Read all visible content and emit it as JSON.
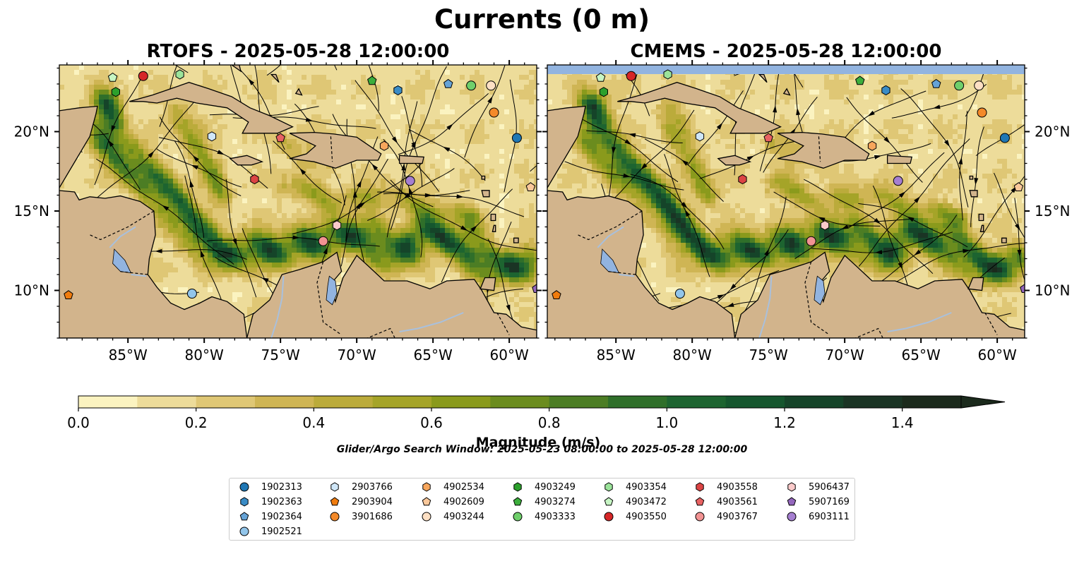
{
  "title": "Currents (0 m)",
  "panels": [
    {
      "title": "RTOFS - 2025-05-28 12:00:00"
    },
    {
      "title": "CMEMS - 2025-05-28 12:00:00"
    }
  ],
  "colors": {
    "land": "#d2b48c",
    "lake": "#92b4e0",
    "river": "#a9c0dc",
    "nodata_band": "#92b4e0",
    "colormap": [
      "#fbf3c0",
      "#eddc9a",
      "#dfc775",
      "#cfb554",
      "#bbab3b",
      "#a5a428",
      "#8a9a1c",
      "#6b8c1e",
      "#4c7d24",
      "#2f6f2a",
      "#1d6430",
      "#15562e",
      "#154429",
      "#1a3424",
      "#1b2a1c"
    ]
  },
  "chart_data": {
    "type": "heatmap",
    "variable": "current speed with streamlines",
    "xlim": [
      -89.5,
      -58.2
    ],
    "ylim": [
      7,
      24.2
    ],
    "x_ticks": [
      -85,
      -80,
      -75,
      -70,
      -65,
      -60
    ],
    "x_tick_labels": [
      "85°W",
      "80°W",
      "75°W",
      "70°W",
      "65°W",
      "60°W"
    ],
    "y_ticks": [
      10,
      15,
      20
    ],
    "y_tick_labels": [
      "10°N",
      "15°N",
      "20°N"
    ],
    "colorbar": {
      "label": "Magnitude (m/s)",
      "range": [
        0,
        1.5
      ],
      "extend": "max",
      "levels": [
        0,
        0.1,
        0.2,
        0.3,
        0.4,
        0.5,
        0.6,
        0.7,
        0.8,
        0.9,
        1.0,
        1.1,
        1.2,
        1.3,
        1.4,
        1.5
      ],
      "tick_values": [
        0.0,
        0.2,
        0.4,
        0.6,
        0.8,
        1.0,
        1.2,
        1.4
      ],
      "tick_labels": [
        "0.0",
        "0.2",
        "0.4",
        "0.6",
        "0.8",
        "1.0",
        "1.2",
        "1.4"
      ]
    },
    "search_window": "Glider/Argo Search Window: 2025-05-23 08:00:00 to 2025-05-28 12:00:00",
    "floats": [
      {
        "id": "1902313",
        "marker": "circle",
        "color": "#1f77b4",
        "lon": -59.5,
        "lat": 19.6
      },
      {
        "id": "1902363",
        "marker": "hexagon",
        "color": "#3a8cc6",
        "lon": -67.3,
        "lat": 22.6
      },
      {
        "id": "1902364",
        "marker": "pentagon",
        "color": "#66a3d6",
        "lon": -64.0,
        "lat": 23.0
      },
      {
        "id": "1902521",
        "marker": "circle",
        "color": "#92c5ea",
        "lon": -80.8,
        "lat": 9.8
      },
      {
        "id": "2903766",
        "marker": "hexagon",
        "color": "#cfe6f7",
        "lon": -79.5,
        "lat": 19.7
      },
      {
        "id": "2903904",
        "marker": "pentagon",
        "color": "#f07c0e",
        "lon": -88.9,
        "lat": 9.7
      },
      {
        "id": "3901686",
        "marker": "circle",
        "color": "#f48a2a",
        "lon": -61.0,
        "lat": 21.2
      },
      {
        "id": "4902534",
        "marker": "hexagon",
        "color": "#f7a65c",
        "lon": -68.2,
        "lat": 19.1
      },
      {
        "id": "4902609",
        "marker": "pentagon",
        "color": "#fac89a",
        "lon": -58.6,
        "lat": 16.5
      },
      {
        "id": "4903244",
        "marker": "circle",
        "color": "#fde0c4",
        "lon": -61.2,
        "lat": 22.9
      },
      {
        "id": "4903249",
        "marker": "hexagon",
        "color": "#2ca02c",
        "lon": -85.8,
        "lat": 22.5
      },
      {
        "id": "4903274",
        "marker": "pentagon",
        "color": "#3cae3c",
        "lon": -69.0,
        "lat": 23.2
      },
      {
        "id": "4903333",
        "marker": "circle",
        "color": "#6fcf6b",
        "lon": -62.5,
        "lat": 22.9
      },
      {
        "id": "4903354",
        "marker": "hexagon",
        "color": "#9be39a",
        "lon": -81.6,
        "lat": 23.6
      },
      {
        "id": "4903472",
        "marker": "pentagon",
        "color": "#c7f5c4",
        "lon": -86.0,
        "lat": 23.4
      },
      {
        "id": "4903550",
        "marker": "circle",
        "color": "#d62728",
        "lon": -84.0,
        "lat": 23.5
      },
      {
        "id": "4903558",
        "marker": "hexagon",
        "color": "#dc4444",
        "lon": -76.7,
        "lat": 17.0
      },
      {
        "id": "4903561",
        "marker": "pentagon",
        "color": "#e86262",
        "lon": -75.0,
        "lat": 19.6
      },
      {
        "id": "4903767",
        "marker": "circle",
        "color": "#f29393",
        "lon": -72.2,
        "lat": 13.1
      },
      {
        "id": "5906437",
        "marker": "hexagon",
        "color": "#fbcaca",
        "lon": -71.3,
        "lat": 14.1
      },
      {
        "id": "5907169",
        "marker": "pentagon",
        "color": "#9467bd",
        "lon": -58.2,
        "lat": 10.1
      },
      {
        "id": "6903111",
        "marker": "circle",
        "color": "#a57fd0",
        "lon": -66.5,
        "lat": 16.9
      }
    ]
  }
}
